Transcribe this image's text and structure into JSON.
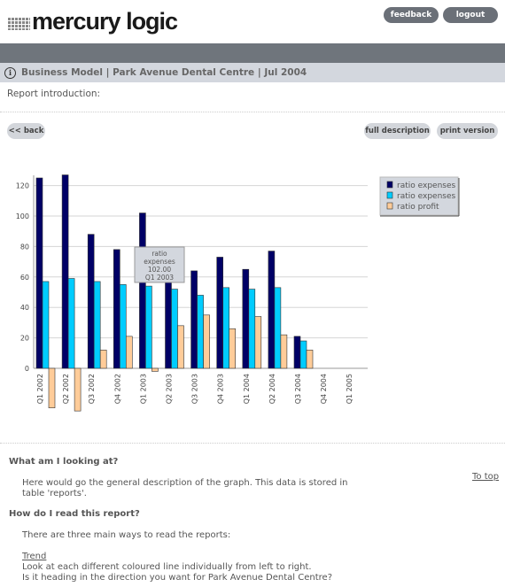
{
  "brand": {
    "name": "mercury logic"
  },
  "header": {
    "feedback_label": "feedback",
    "logout_label": "logout"
  },
  "title_bar": {
    "title": "Business Model | Park Avenue Dental Centre | Jul 2004"
  },
  "intro": {
    "label": "Report introduction:"
  },
  "actions": {
    "back_label": "<< back",
    "full_label": "full description",
    "print_label": "print version"
  },
  "chart_data": {
    "type": "bar",
    "categories": [
      "Q1 2002",
      "Q2 2002",
      "Q3 2002",
      "Q4 2002",
      "Q1 2003",
      "Q2 2003",
      "Q3 2003",
      "Q4 2003",
      "Q1 2004",
      "Q2 2004",
      "Q3 2004",
      "Q4 2004",
      "Q1 2005"
    ],
    "series": [
      {
        "name": "ratio expenses",
        "color": "#000066",
        "values": [
          125,
          127,
          88,
          78,
          102,
          64,
          64,
          73,
          65,
          77,
          21,
          null,
          null
        ]
      },
      {
        "name": "ratio expenses",
        "color": "#00ccff",
        "values": [
          57,
          59,
          57,
          55,
          54,
          52,
          48,
          53,
          52,
          53,
          18,
          null,
          null
        ]
      },
      {
        "name": "ratio profit",
        "color": "#ffcc99",
        "values": [
          -26,
          -28,
          12,
          21,
          -2,
          28,
          35,
          26,
          34,
          22,
          12,
          null,
          null
        ]
      }
    ],
    "yticks": [
      0,
      20,
      40,
      60,
      80,
      100,
      120
    ],
    "ylim": [
      -30,
      130
    ],
    "grid": true,
    "legend": "top-right",
    "tooltip": {
      "lines": [
        "ratio",
        "expenses",
        "102.00",
        "Q1 2003"
      ]
    }
  },
  "sections": [
    {
      "heading": "What am I looking at?",
      "lines": [
        "Here would go the general description of the graph. This data is stored in",
        "table 'reports'."
      ]
    },
    {
      "heading": "How do I read this report?",
      "lines": [
        "There are three main ways to read the reports:"
      ]
    }
  ],
  "trend": {
    "link": "Trend",
    "lines": [
      "Look at each different coloured line individually from left to right.",
      "Is it heading in the direction you want for Park Avenue Dental Centre?"
    ]
  },
  "to_top": "To top"
}
